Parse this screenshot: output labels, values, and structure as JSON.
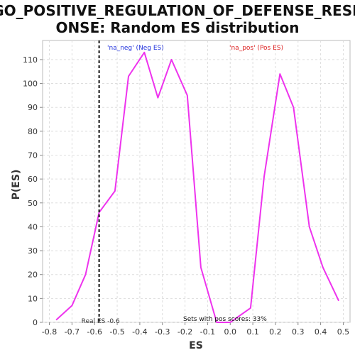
{
  "chart_data": {
    "type": "line",
    "title_line1": "GO_POSITIVE_REGULATION_OF_DEFENSE_RESP",
    "title_line2": "ONSE: Random ES distribution",
    "xlabel": "ES",
    "ylabel": "P(ES)",
    "xlim": [
      -0.83,
      0.53
    ],
    "ylim": [
      0,
      118
    ],
    "x_ticks": [
      "-0.8",
      "-0.7",
      "-0.6",
      "-0.5",
      "-0.4",
      "-0.3",
      "-0.2",
      "-0.1",
      "0.0",
      "0.1",
      "0.2",
      "0.3",
      "0.4",
      "0.5"
    ],
    "x_tick_values": [
      -0.8,
      -0.7,
      -0.6,
      -0.5,
      -0.4,
      -0.3,
      -0.2,
      -0.1,
      0.0,
      0.1,
      0.2,
      0.3,
      0.4,
      0.5
    ],
    "y_ticks": [
      0,
      10,
      20,
      30,
      40,
      50,
      60,
      70,
      80,
      90,
      100,
      110
    ],
    "grid": true,
    "series": [
      {
        "color": "#ee33ee",
        "x": [
          -0.77,
          -0.7,
          -0.64,
          -0.58,
          -0.51,
          -0.45,
          -0.38,
          -0.32,
          -0.26,
          -0.19,
          -0.13,
          -0.06,
          0.0,
          0.09,
          0.15,
          0.22,
          0.28,
          0.35,
          0.41,
          0.48
        ],
        "y": [
          1,
          7,
          20,
          46,
          55,
          103,
          113,
          94,
          110,
          95,
          23,
          0,
          0,
          6,
          61,
          104,
          90,
          40,
          23,
          9
        ]
      }
    ],
    "real_es": {
      "value": -0.58,
      "label": "Real ES -0.6",
      "color": "#111111"
    },
    "annotations": {
      "neg": {
        "text": "'na_neg' (Neg ES)",
        "color": "#2233dd"
      },
      "pos": {
        "text": "'na_pos' (Pos ES)",
        "color": "#dd2222"
      },
      "pos_scores": {
        "text": "Sets with pos scores: 33%",
        "color": "#111111"
      }
    }
  }
}
